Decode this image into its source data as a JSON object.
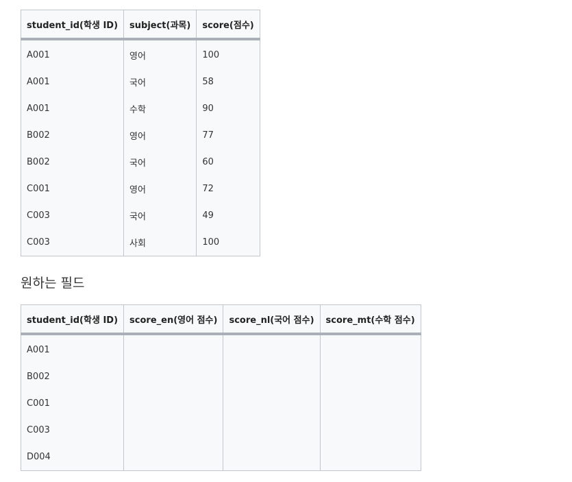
{
  "table1": {
    "headers": [
      "student_id(학생 ID)",
      "subject(과목)",
      "score(점수)"
    ],
    "rows": [
      [
        "A001",
        "영어",
        "100"
      ],
      [
        "A001",
        "국어",
        "58"
      ],
      [
        "A001",
        "수학",
        "90"
      ],
      [
        "B002",
        "영어",
        "77"
      ],
      [
        "B002",
        "국어",
        "60"
      ],
      [
        "C001",
        "영어",
        "72"
      ],
      [
        "C003",
        "국어",
        "49"
      ],
      [
        "C003",
        "사회",
        "100"
      ]
    ]
  },
  "section_heading": "원하는 필드",
  "table2": {
    "headers": [
      "student_id(학생 ID)",
      "score_en(영어 점수)",
      "score_nl(국어 점수)",
      "score_mt(수학 점수)"
    ],
    "rows": [
      [
        "A001",
        "",
        "",
        ""
      ],
      [
        "B002",
        "",
        "",
        ""
      ],
      [
        "C001",
        "",
        "",
        ""
      ],
      [
        "C003",
        "",
        "",
        ""
      ],
      [
        "D004",
        "",
        "",
        ""
      ]
    ]
  }
}
